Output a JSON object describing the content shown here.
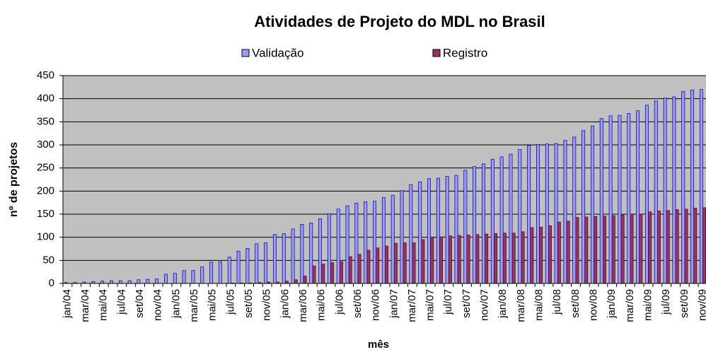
{
  "chart_data": {
    "type": "bar",
    "title": "Atividades de Projeto do MDL no Brasil",
    "y_label": "nº de projetos",
    "x_label": "mês",
    "categories": [
      "jan/04",
      null,
      "mar/04",
      null,
      "mai/04",
      null,
      "jul/04",
      null,
      "set/04",
      null,
      "nov/04",
      null,
      "jan/05",
      null,
      "mar/05",
      null,
      "mai/05",
      null,
      "jul/05",
      null,
      "set/05",
      null,
      "nov/05",
      null,
      "jan/06",
      null,
      "mar/06",
      null,
      "mai/06",
      null,
      "jul/06",
      null,
      "set/06",
      null,
      "nov/06",
      null,
      "jan/07",
      null,
      "mar/07",
      null,
      "mai/07",
      null,
      "jul/07",
      null,
      "set/07",
      null,
      "nov/07",
      null,
      "jan/08",
      null,
      "mar/08",
      null,
      "mai/08",
      null,
      "jul/08",
      null,
      "set/08",
      null,
      "nov/08",
      null,
      "jan/09",
      null,
      "mar/09",
      null,
      "mai/09",
      null,
      "jul/09",
      null,
      "set/09",
      null,
      "nov/09"
    ],
    "series": [
      {
        "name": "Validação",
        "color": "#9999ff",
        "values": [
          2,
          2,
          3,
          4,
          5,
          6,
          6,
          6,
          8,
          9,
          10,
          20,
          22,
          28,
          28,
          36,
          46,
          47,
          57,
          70,
          76,
          86,
          88,
          106,
          108,
          118,
          128,
          131,
          140,
          151,
          161,
          168,
          174,
          177,
          178,
          186,
          191,
          201,
          214,
          220,
          227,
          228,
          232,
          234,
          245,
          253,
          259,
          269,
          274,
          280,
          290,
          299,
          301,
          302,
          303,
          310,
          317,
          331,
          341,
          357,
          363,
          364,
          368,
          374,
          386,
          395,
          402,
          404,
          416,
          419,
          420
        ]
      },
      {
        "name": "Registro",
        "color": "#993366",
        "values": [
          0,
          0,
          0,
          0,
          0,
          0,
          0,
          0,
          0,
          0,
          0,
          0,
          0,
          0,
          0,
          0,
          0,
          0,
          1,
          1,
          1,
          2,
          3,
          3,
          5,
          8,
          16,
          38,
          42,
          45,
          47,
          58,
          63,
          72,
          77,
          81,
          87,
          88,
          88,
          95,
          100,
          101,
          103,
          104,
          105,
          106,
          107,
          108,
          109,
          109,
          112,
          121,
          122,
          125,
          133,
          135,
          143,
          144,
          145,
          146,
          147,
          148,
          150,
          150,
          155,
          157,
          158,
          160,
          161,
          163,
          164
        ]
      }
    ],
    "ylim": [
      0,
      450
    ],
    "yticks": [
      0,
      50,
      100,
      150,
      200,
      250,
      300,
      350,
      400,
      450
    ],
    "grid": true
  }
}
